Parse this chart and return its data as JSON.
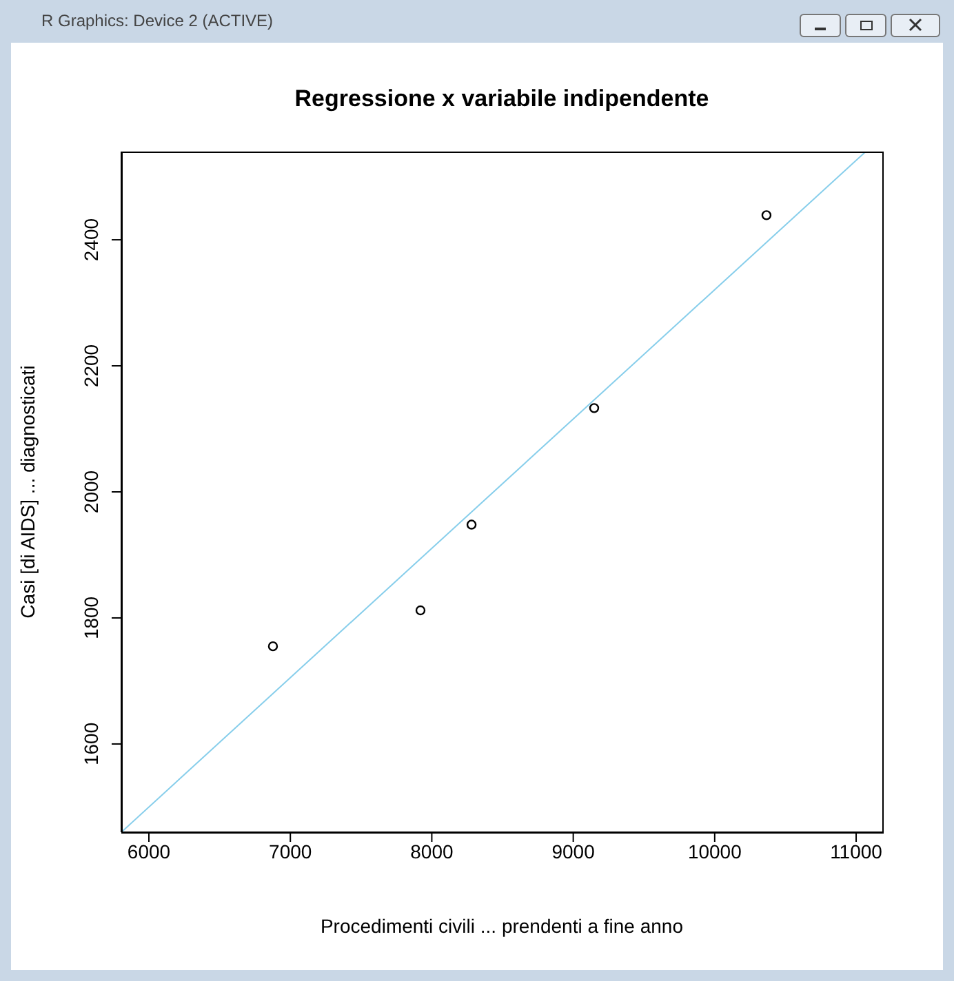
{
  "chart_data": {
    "type": "scatter",
    "title": "Regressione x variabile indipendente",
    "xlabel": "Procedimenti civili ... prendenti a fine anno",
    "ylabel": "Casi [di AIDS] ... diagnosticati",
    "annotations": [
      "R Graphics: Device 2 (ACTIVE)"
    ],
    "series": [
      {
        "color": "#000000",
        "marker": "circle",
        "x": [
          6877,
          7920,
          8281,
          9148,
          10366
        ],
        "values": [
          1755,
          1812,
          1948,
          2133,
          2439
        ]
      },
      {
        "type": "line",
        "color": "#87ceeb",
        "marker": "none",
        "line_style": "solid",
        "x": [
          5805,
          11068
        ],
        "values": [
          1460,
          2540
        ]
      }
    ],
    "xlim": [
      5805,
      11185
    ],
    "ylim": [
      1460,
      2540
    ],
    "xticks": [
      6000,
      7000,
      8000,
      9000,
      10000,
      11000
    ],
    "yticks": [
      1600,
      1800,
      2000,
      2200,
      2400
    ],
    "grid": false
  }
}
